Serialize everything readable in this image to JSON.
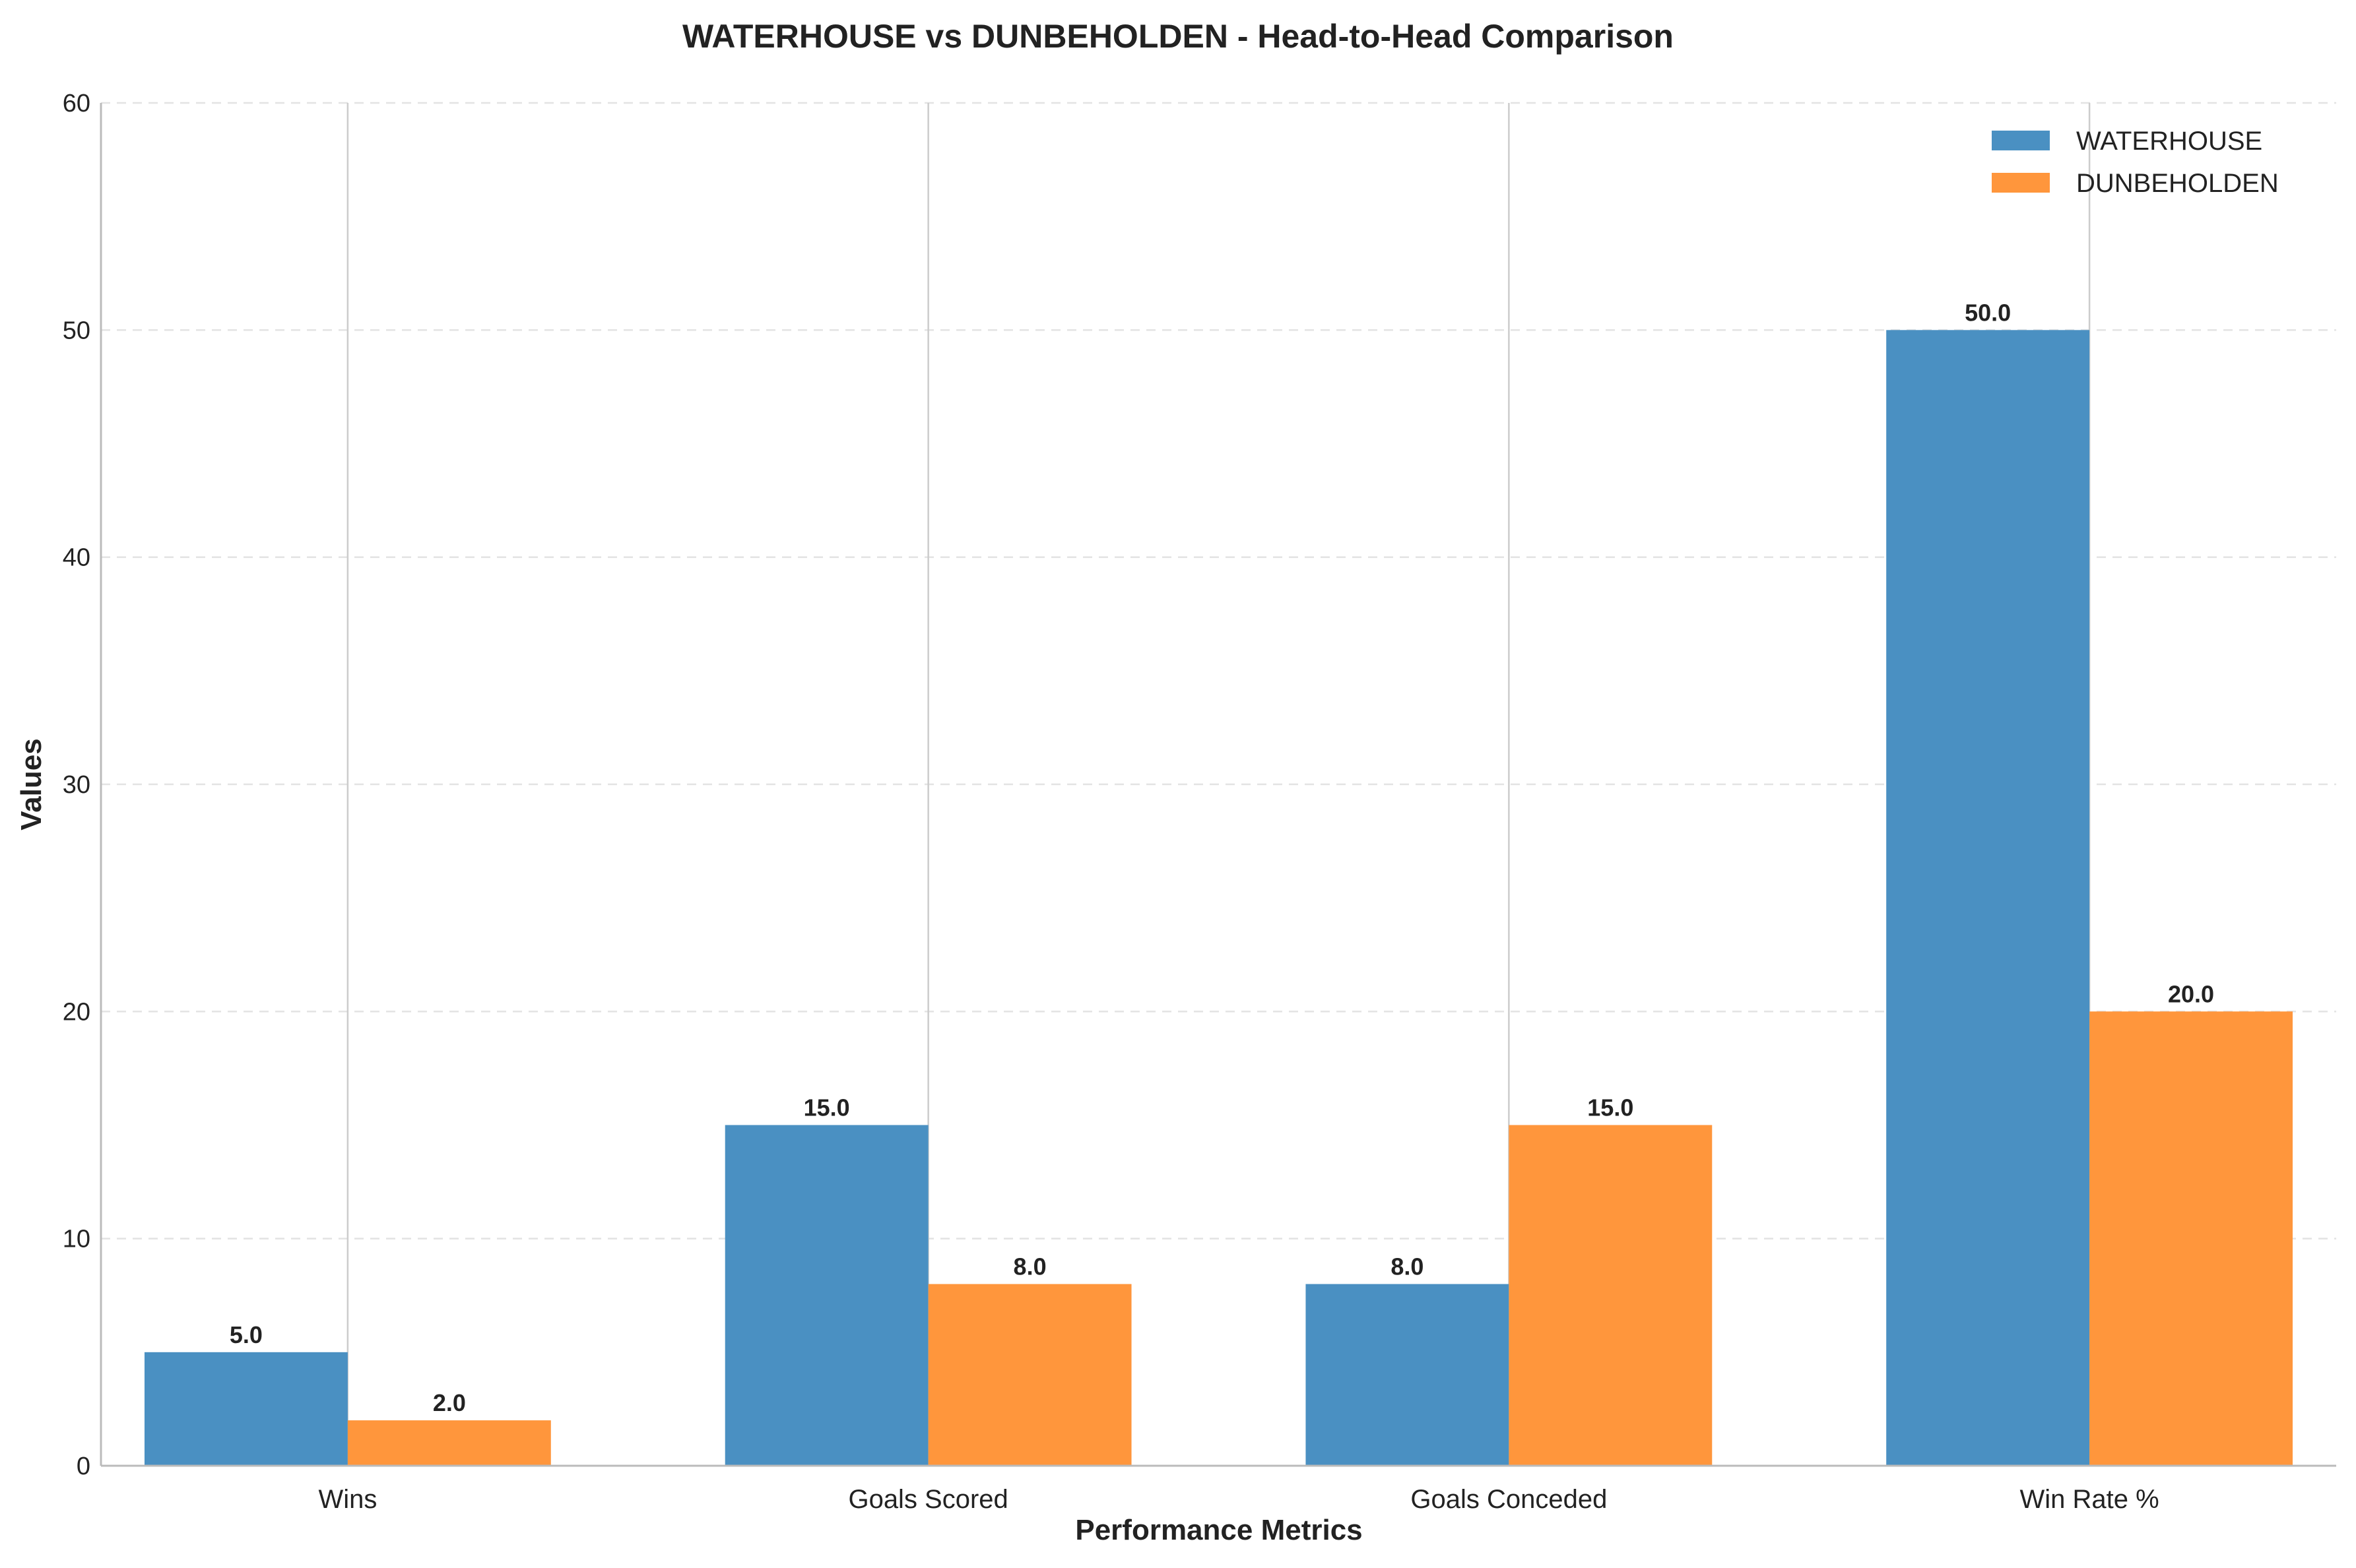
{
  "chart_data": {
    "type": "bar",
    "title": "WATERHOUSE vs DUNBEHOLDEN - Head-to-Head Comparison",
    "xlabel": "Performance Metrics",
    "ylabel": "Values",
    "categories": [
      "Wins",
      "Goals Scored",
      "Goals Conceded",
      "Win Rate %"
    ],
    "series": [
      {
        "name": "WATERHOUSE",
        "values": [
          5.0,
          15.0,
          8.0,
          50.0
        ],
        "color": "#4a90c2"
      },
      {
        "name": "DUNBEHOLDEN",
        "values": [
          2.0,
          8.0,
          15.0,
          20.0
        ],
        "color": "#ff963c"
      }
    ],
    "ylim": [
      0,
      60
    ],
    "yticks": [
      0,
      10,
      20,
      30,
      40,
      50,
      60
    ],
    "grid": true,
    "legend_position": "top-right"
  }
}
